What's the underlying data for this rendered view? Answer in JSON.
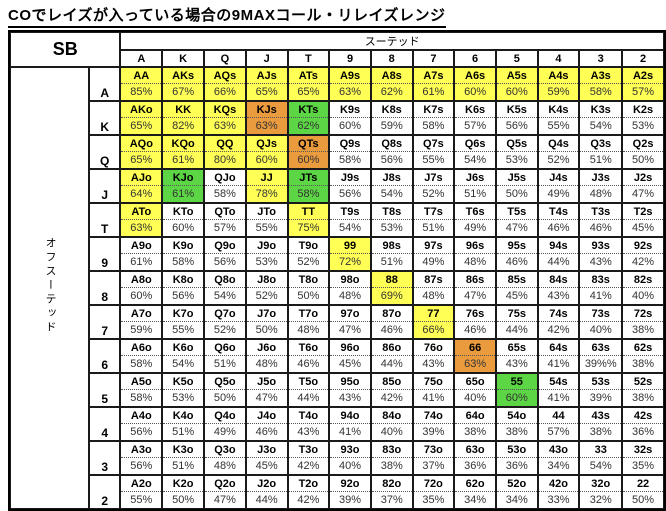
{
  "title": "COでレイズが入っている場合の9MAXコール・リレイズレンジ",
  "chart_data": {
    "type": "table",
    "corner_label": "SB",
    "suited_label": "スーテッド",
    "offsuit_label": "オフスーテッド",
    "col_headers": [
      "A",
      "K",
      "Q",
      "J",
      "T",
      "9",
      "8",
      "7",
      "6",
      "5",
      "4",
      "3",
      "2"
    ],
    "colors": {
      "y": "#ffff55",
      "o": "#ea9b3e",
      "g": "#5cd645",
      "w": "#ffffff"
    },
    "rows": [
      {
        "label": "A",
        "cells": [
          [
            "AA",
            "85%",
            "y"
          ],
          [
            "AKs",
            "67%",
            "y"
          ],
          [
            "AQs",
            "66%",
            "y"
          ],
          [
            "AJs",
            "65%",
            "y"
          ],
          [
            "ATs",
            "65%",
            "y"
          ],
          [
            "A9s",
            "63%",
            "y"
          ],
          [
            "A8s",
            "62%",
            "y"
          ],
          [
            "A7s",
            "61%",
            "y"
          ],
          [
            "A6s",
            "60%",
            "y"
          ],
          [
            "A5s",
            "60%",
            "y"
          ],
          [
            "A4s",
            "59%",
            "y"
          ],
          [
            "A3s",
            "58%",
            "y"
          ],
          [
            "A2s",
            "57%",
            "y"
          ]
        ]
      },
      {
        "label": "K",
        "cells": [
          [
            "AKo",
            "65%",
            "y"
          ],
          [
            "KK",
            "82%",
            "y"
          ],
          [
            "KQs",
            "63%",
            "y"
          ],
          [
            "KJs",
            "63%",
            "o"
          ],
          [
            "KTs",
            "62%",
            "g"
          ],
          [
            "K9s",
            "60%",
            "w"
          ],
          [
            "K8s",
            "59%",
            "w"
          ],
          [
            "K7s",
            "58%",
            "w"
          ],
          [
            "K6s",
            "57%",
            "w"
          ],
          [
            "K5s",
            "56%",
            "w"
          ],
          [
            "K4s",
            "55%",
            "w"
          ],
          [
            "K3s",
            "54%",
            "w"
          ],
          [
            "K2s",
            "53%",
            "w"
          ]
        ]
      },
      {
        "label": "Q",
        "cells": [
          [
            "AQo",
            "65%",
            "y"
          ],
          [
            "KQo",
            "61%",
            "y"
          ],
          [
            "QQ",
            "80%",
            "y"
          ],
          [
            "QJs",
            "60%",
            "y"
          ],
          [
            "QTs",
            "60%",
            "o"
          ],
          [
            "Q9s",
            "58%",
            "w"
          ],
          [
            "Q8s",
            "56%",
            "w"
          ],
          [
            "Q7s",
            "55%",
            "w"
          ],
          [
            "Q6s",
            "54%",
            "w"
          ],
          [
            "Q5s",
            "53%",
            "w"
          ],
          [
            "Q4s",
            "52%",
            "w"
          ],
          [
            "Q3s",
            "51%",
            "w"
          ],
          [
            "Q2s",
            "50%",
            "w"
          ]
        ]
      },
      {
        "label": "J",
        "cells": [
          [
            "AJo",
            "64%",
            "y"
          ],
          [
            "KJo",
            "61%",
            "g"
          ],
          [
            "QJo",
            "58%",
            "w"
          ],
          [
            "JJ",
            "78%",
            "y"
          ],
          [
            "JTs",
            "58%",
            "g"
          ],
          [
            "J9s",
            "56%",
            "w"
          ],
          [
            "J8s",
            "54%",
            "w"
          ],
          [
            "J7s",
            "52%",
            "w"
          ],
          [
            "J6s",
            "51%",
            "w"
          ],
          [
            "J5s",
            "50%",
            "w"
          ],
          [
            "J4s",
            "49%",
            "w"
          ],
          [
            "J3s",
            "48%",
            "w"
          ],
          [
            "J2s",
            "47%",
            "w"
          ]
        ]
      },
      {
        "label": "T",
        "cells": [
          [
            "ATo",
            "63%",
            "y"
          ],
          [
            "KTo",
            "60%",
            "w"
          ],
          [
            "QTo",
            "57%",
            "w"
          ],
          [
            "JTo",
            "55%",
            "w"
          ],
          [
            "TT",
            "75%",
            "y"
          ],
          [
            "T9s",
            "54%",
            "w"
          ],
          [
            "T8s",
            "53%",
            "w"
          ],
          [
            "T7s",
            "51%",
            "w"
          ],
          [
            "T6s",
            "49%",
            "w"
          ],
          [
            "T5s",
            "47%",
            "w"
          ],
          [
            "T4s",
            "46%",
            "w"
          ],
          [
            "T3s",
            "46%",
            "w"
          ],
          [
            "T2s",
            "45%",
            "w"
          ]
        ]
      },
      {
        "label": "9",
        "cells": [
          [
            "A9o",
            "61%",
            "w"
          ],
          [
            "K9o",
            "58%",
            "w"
          ],
          [
            "Q9o",
            "56%",
            "w"
          ],
          [
            "J9o",
            "53%",
            "w"
          ],
          [
            "T9o",
            "52%",
            "w"
          ],
          [
            "99",
            "72%",
            "y"
          ],
          [
            "98s",
            "51%",
            "w"
          ],
          [
            "97s",
            "49%",
            "w"
          ],
          [
            "96s",
            "48%",
            "w"
          ],
          [
            "95s",
            "46%",
            "w"
          ],
          [
            "94s",
            "44%",
            "w"
          ],
          [
            "93s",
            "43%",
            "w"
          ],
          [
            "92s",
            "42%",
            "w"
          ]
        ]
      },
      {
        "label": "8",
        "cells": [
          [
            "A8o",
            "60%",
            "w"
          ],
          [
            "K8o",
            "56%",
            "w"
          ],
          [
            "Q8o",
            "54%",
            "w"
          ],
          [
            "J8o",
            "52%",
            "w"
          ],
          [
            "T8o",
            "50%",
            "w"
          ],
          [
            "98o",
            "48%",
            "w"
          ],
          [
            "88",
            "69%",
            "y"
          ],
          [
            "87s",
            "48%",
            "w"
          ],
          [
            "86s",
            "47%",
            "w"
          ],
          [
            "85s",
            "45%",
            "w"
          ],
          [
            "84s",
            "43%",
            "w"
          ],
          [
            "83s",
            "41%",
            "w"
          ],
          [
            "82s",
            "40%",
            "w"
          ]
        ]
      },
      {
        "label": "7",
        "cells": [
          [
            "A7o",
            "59%",
            "w"
          ],
          [
            "K7o",
            "55%",
            "w"
          ],
          [
            "Q7o",
            "52%",
            "w"
          ],
          [
            "J7o",
            "50%",
            "w"
          ],
          [
            "T7o",
            "48%",
            "w"
          ],
          [
            "97o",
            "47%",
            "w"
          ],
          [
            "87o",
            "46%",
            "w"
          ],
          [
            "77",
            "66%",
            "y"
          ],
          [
            "76s",
            "46%",
            "w"
          ],
          [
            "75s",
            "44%",
            "w"
          ],
          [
            "74s",
            "42%",
            "w"
          ],
          [
            "73s",
            "40%",
            "w"
          ],
          [
            "72s",
            "38%",
            "w"
          ]
        ]
      },
      {
        "label": "6",
        "cells": [
          [
            "A6o",
            "58%",
            "w"
          ],
          [
            "K6o",
            "54%",
            "w"
          ],
          [
            "Q6o",
            "51%",
            "w"
          ],
          [
            "J6o",
            "48%",
            "w"
          ],
          [
            "T6o",
            "46%",
            "w"
          ],
          [
            "96o",
            "45%",
            "w"
          ],
          [
            "86o",
            "44%",
            "w"
          ],
          [
            "76o",
            "43%",
            "w"
          ],
          [
            "66",
            "63%",
            "o"
          ],
          [
            "65s",
            "43%",
            "w"
          ],
          [
            "64s",
            "41%",
            "w"
          ],
          [
            "63s",
            "39%%",
            "w"
          ],
          [
            "62s",
            "38%",
            "w"
          ]
        ]
      },
      {
        "label": "5",
        "cells": [
          [
            "A5o",
            "58%",
            "w"
          ],
          [
            "K5o",
            "53%",
            "w"
          ],
          [
            "Q5o",
            "50%",
            "w"
          ],
          [
            "J5o",
            "47%",
            "w"
          ],
          [
            "T5o",
            "44%",
            "w"
          ],
          [
            "95o",
            "43%",
            "w"
          ],
          [
            "85o",
            "42%",
            "w"
          ],
          [
            "75o",
            "41%",
            "w"
          ],
          [
            "65o",
            "40%",
            "w"
          ],
          [
            "55",
            "60%",
            "g"
          ],
          [
            "54s",
            "41%",
            "w"
          ],
          [
            "53s",
            "39%",
            "w"
          ],
          [
            "52s",
            "38%",
            "w"
          ]
        ]
      },
      {
        "label": "4",
        "cells": [
          [
            "A4o",
            "56%",
            "w"
          ],
          [
            "K4o",
            "51%",
            "w"
          ],
          [
            "Q4o",
            "49%",
            "w"
          ],
          [
            "J4o",
            "46%",
            "w"
          ],
          [
            "T4o",
            "43%",
            "w"
          ],
          [
            "94o",
            "41%",
            "w"
          ],
          [
            "84o",
            "40%",
            "w"
          ],
          [
            "74o",
            "39%",
            "w"
          ],
          [
            "64o",
            "38%",
            "w"
          ],
          [
            "54o",
            "38%",
            "w"
          ],
          [
            "44",
            "57%",
            "w"
          ],
          [
            "43s",
            "38%",
            "w"
          ],
          [
            "42s",
            "36%",
            "w"
          ]
        ]
      },
      {
        "label": "3",
        "cells": [
          [
            "A3o",
            "56%",
            "w"
          ],
          [
            "K3o",
            "51%",
            "w"
          ],
          [
            "Q3o",
            "48%",
            "w"
          ],
          [
            "J3o",
            "45%",
            "w"
          ],
          [
            "T3o",
            "42%",
            "w"
          ],
          [
            "93o",
            "40%",
            "w"
          ],
          [
            "83o",
            "38%",
            "w"
          ],
          [
            "73o",
            "37%",
            "w"
          ],
          [
            "63o",
            "36%",
            "w"
          ],
          [
            "53o",
            "36%",
            "w"
          ],
          [
            "43o",
            "34%",
            "w"
          ],
          [
            "33",
            "54%",
            "w"
          ],
          [
            "32s",
            "35%",
            "w"
          ]
        ]
      },
      {
        "label": "2",
        "cells": [
          [
            "A2o",
            "55%",
            "w"
          ],
          [
            "K2o",
            "50%",
            "w"
          ],
          [
            "Q2o",
            "47%",
            "w"
          ],
          [
            "J2o",
            "44%",
            "w"
          ],
          [
            "T2o",
            "42%",
            "w"
          ],
          [
            "92o",
            "39%",
            "w"
          ],
          [
            "82o",
            "37%",
            "w"
          ],
          [
            "72o",
            "35%",
            "w"
          ],
          [
            "62o",
            "34%",
            "w"
          ],
          [
            "52o",
            "34%",
            "w"
          ],
          [
            "42o",
            "33%",
            "w"
          ],
          [
            "32o",
            "32%",
            "w"
          ],
          [
            "22",
            "50%",
            "w"
          ]
        ]
      }
    ]
  }
}
